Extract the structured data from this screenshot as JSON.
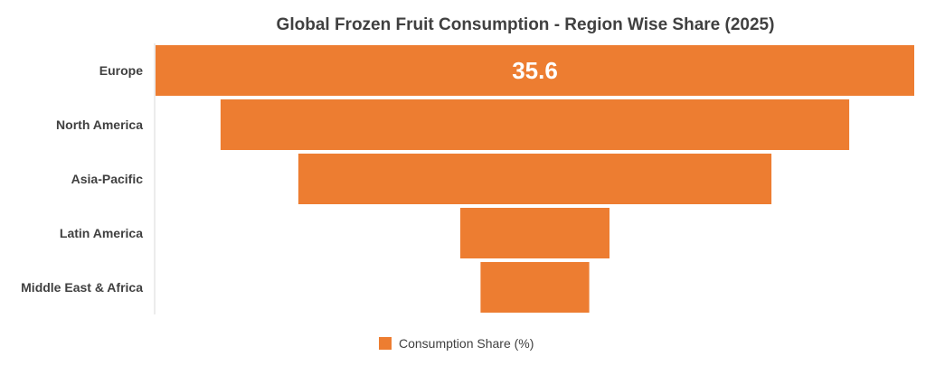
{
  "chart_data": {
    "type": "bar",
    "subtype": "funnel",
    "title": "Global Frozen Fruit Consumption - Region Wise Share (2025)",
    "categories": [
      "Europe",
      "North America",
      "Asia-Pacific",
      "Latin America",
      "Middle East & Africa"
    ],
    "series": [
      {
        "name": "Consumption Share (%)",
        "values": [
          35.6,
          29.5,
          22.2,
          7.0,
          5.1
        ],
        "data_labels": [
          "35.6",
          "",
          "",
          "",
          ""
        ]
      }
    ],
    "legend_placement": "bottom-center",
    "grid": false,
    "colors": {
      "bar": "#ED7D31",
      "axis": "#D9D9D9",
      "text": "#404040"
    }
  }
}
